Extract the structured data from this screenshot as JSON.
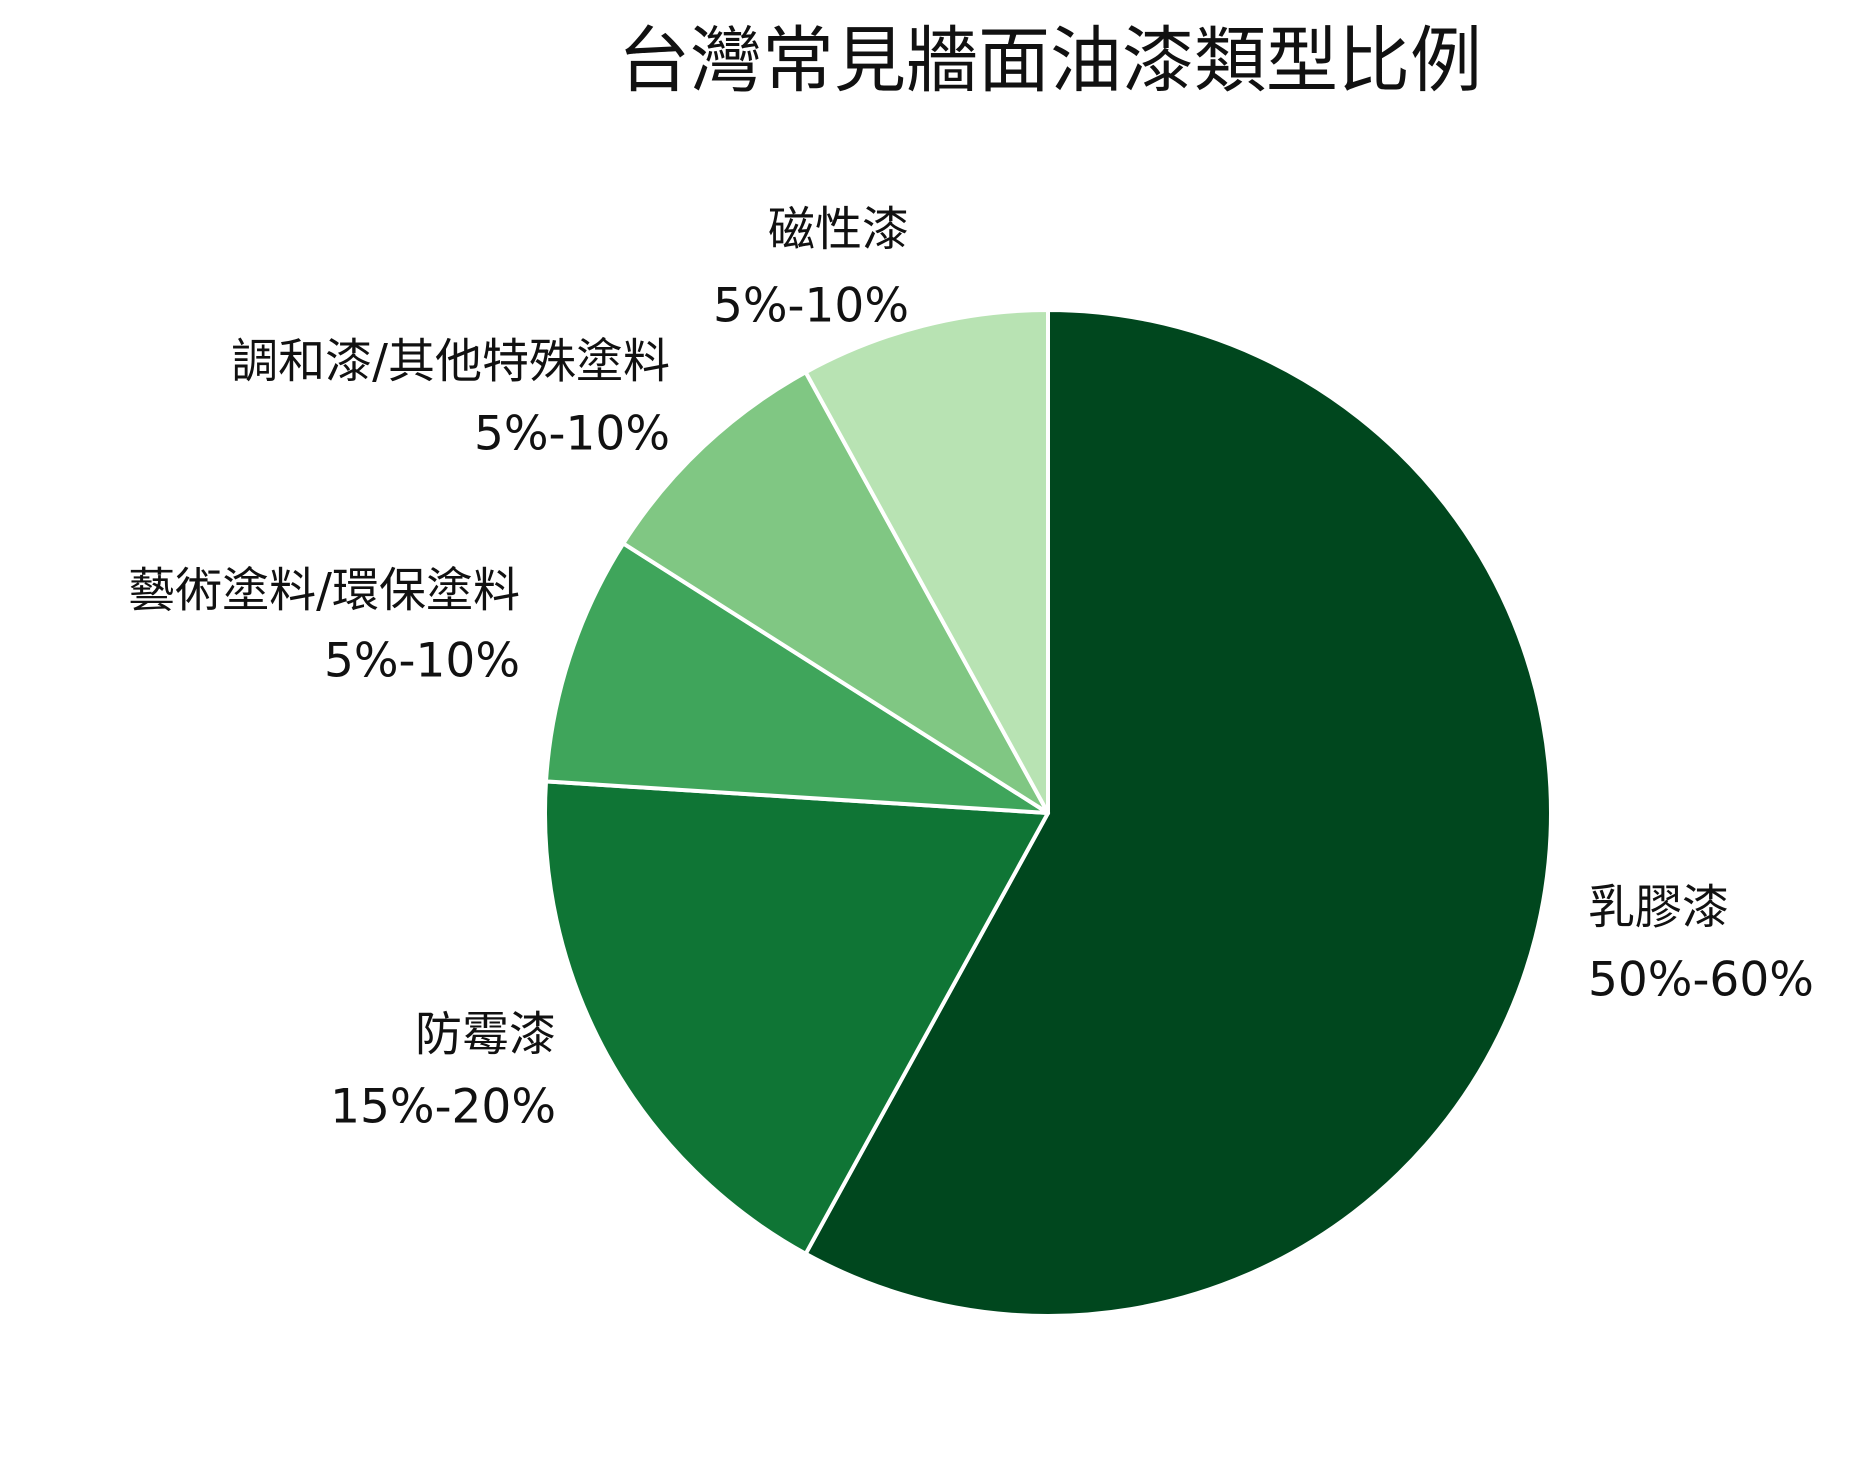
{
  "chart_data": {
    "type": "pie",
    "title": "台灣常見牆面油漆類型比例",
    "categories": [
      "乳膠漆",
      "防霉漆",
      "藝術塗料/環保塗料",
      "調和漆/其他特殊塗料",
      "磁性漆"
    ],
    "values": [
      58,
      18,
      8,
      8,
      8
    ],
    "value_labels": [
      "50%-60%",
      "15%-20%",
      "5%-10%",
      "5%-10%",
      "5%-10%"
    ],
    "colors": [
      "#00471e",
      "#0f7535",
      "#3fa55b",
      "#80c783",
      "#b8e3b3"
    ],
    "start_angle": 0,
    "direction": "clockwise"
  }
}
